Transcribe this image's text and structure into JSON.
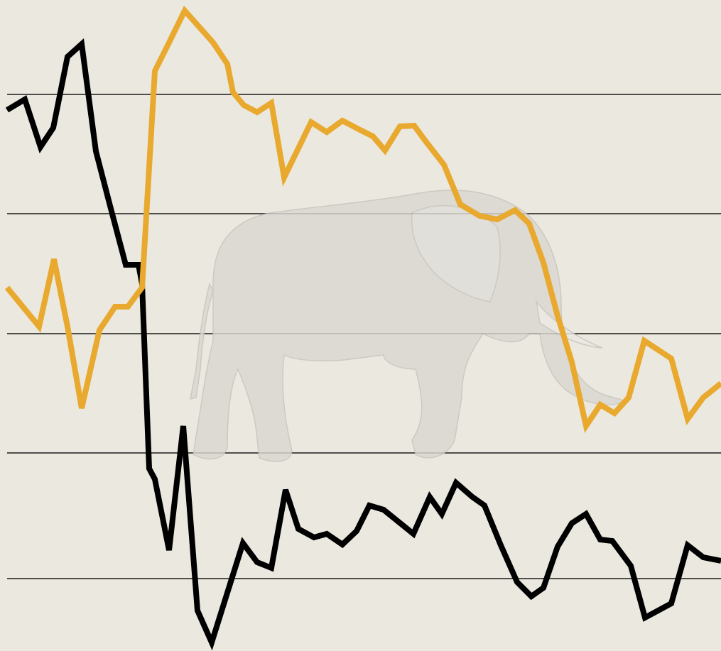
{
  "chart_data": {
    "type": "line",
    "xlim": [
      0,
      1015
    ],
    "ylim": [
      0,
      917
    ],
    "yticks": [
      102,
      279,
      447,
      616,
      784
    ],
    "grid": true,
    "series": [
      {
        "color": "#000000",
        "x": [
          10,
          35,
          57,
          75,
          95,
          115,
          135,
          155,
          177,
          195,
          200,
          210,
          218,
          238,
          258,
          278,
          298,
          320,
          342,
          362,
          382,
          402,
          420,
          442,
          460,
          482,
          502,
          520,
          540,
          582,
          605,
          622,
          642,
          665,
          682,
          705,
          728,
          748,
          765,
          785,
          805,
          825,
          845,
          862,
          888,
          908,
          945,
          968,
          990,
          1015
        ],
        "values": [
          762,
          777,
          710,
          737,
          837,
          855,
          704,
          627,
          544,
          544,
          517,
          257,
          242,
          142,
          317,
          57,
          12,
          82,
          152,
          125,
          117,
          227,
          172,
          160,
          165,
          150,
          169,
          205,
          199,
          165,
          217,
          193,
          237,
          217,
          205,
          149,
          97,
          77,
          89,
          147,
          180,
          193,
          157,
          155,
          120,
          47,
          67,
          149,
          132,
          127
        ]
      },
      {
        "color": "#e8a92e",
        "x": [
          10,
          55,
          76,
          95,
          115,
          140,
          162,
          180,
          200,
          218,
          238,
          260,
          300,
          320,
          328,
          343,
          362,
          382,
          400,
          438,
          460,
          482,
          505,
          525,
          542,
          563,
          583,
          600,
          625,
          648,
          675,
          700,
          725,
          745,
          765,
          785,
          805,
          825,
          845,
          865,
          885,
          907,
          945,
          968,
          990,
          1015
        ],
        "values": [
          512,
          457,
          552,
          457,
          342,
          452,
          485,
          485,
          512,
          817,
          857,
          902,
          857,
          827,
          787,
          769,
          759,
          772,
          667,
          745,
          731,
          747,
          735,
          725,
          705,
          739,
          740,
          717,
          685,
          629,
          613,
          608,
          621,
          602,
          547,
          472,
          407,
          317,
          347,
          335,
          357,
          437,
          412,
          327,
          357,
          377
        ]
      }
    ]
  }
}
